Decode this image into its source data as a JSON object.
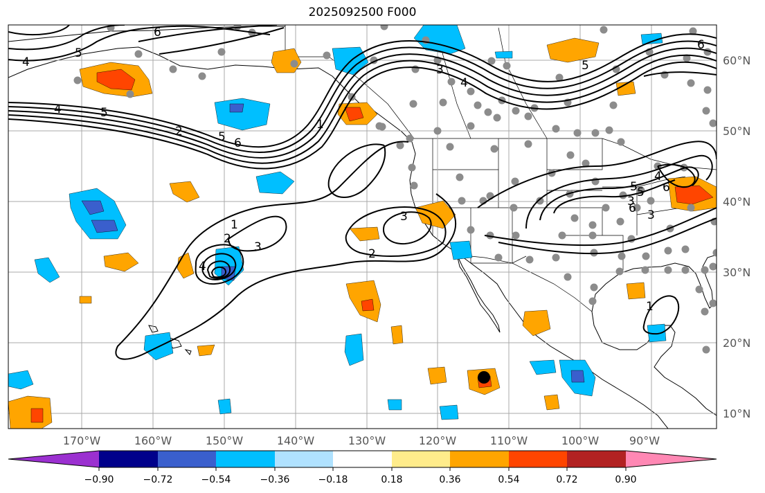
{
  "title": "2025092500 F000",
  "colors": {
    "ocean": "#ffffff",
    "grid": "#a8a8a8",
    "contour": "#000000",
    "station": "#8c8c8c",
    "storm_marker": "#000000"
  },
  "map": {
    "lon_labels": [
      "170°W",
      "160°W",
      "150°W",
      "140°W",
      "130°W",
      "120°W",
      "110°W",
      "100°W",
      "90°W"
    ],
    "lat_labels": [
      "60°N",
      "50°N",
      "40°N",
      "30°N",
      "20°N",
      "10°N"
    ],
    "contour_labels": [
      "6",
      "5",
      "4",
      "4",
      "5",
      "6",
      "3",
      "4",
      "5",
      "1",
      "2",
      "5",
      "6",
      "1",
      "2",
      "3",
      "4",
      "3",
      "2",
      "3",
      "6",
      "5",
      "4",
      "3",
      "6",
      "5",
      "1"
    ]
  },
  "colorbar": {
    "colors": [
      "#9b30d0",
      "#00008b",
      "#3a5fcd",
      "#00bfff",
      "#b0e2ff",
      "#ffffff",
      "#ffec8b",
      "#ffa500",
      "#ff4500",
      "#b22222",
      "#ff88b4"
    ],
    "ticks": [
      "−0.90",
      "−0.72",
      "−0.54",
      "−0.36",
      "−0.18",
      "0.18",
      "0.36",
      "0.54",
      "0.72",
      "0.90"
    ]
  }
}
